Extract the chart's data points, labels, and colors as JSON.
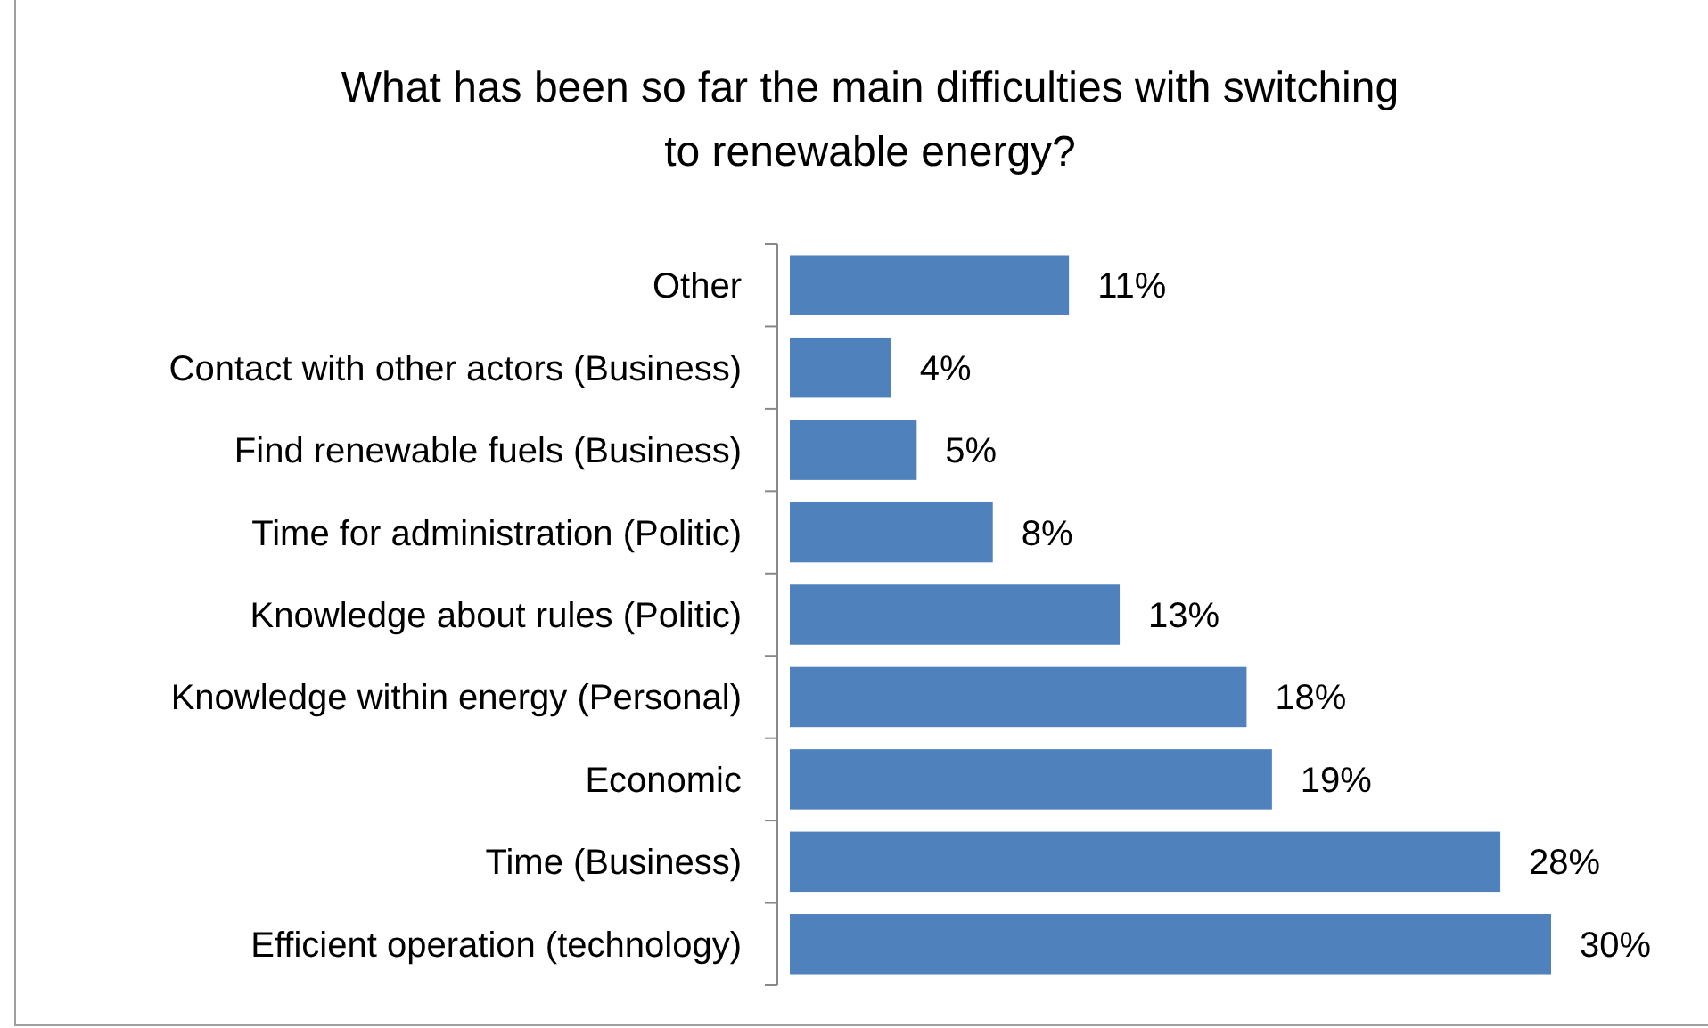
{
  "chart_data": {
    "type": "bar",
    "orientation": "horizontal",
    "title": "What has been so far the main difficulties with switching to renewable energy?",
    "categories": [
      "Other",
      "Contact with other actors (Business)",
      "Find renewable fuels (Business)",
      "Time for administration (Politic)",
      "Knowledge about rules (Politic)",
      "Knowledge within energy (Personal)",
      "Economic",
      "Time (Business)",
      "Efficient operation (technology)"
    ],
    "values": [
      11,
      4,
      5,
      8,
      13,
      18,
      19,
      28,
      30
    ],
    "value_labels": [
      "11%",
      "4%",
      "5%",
      "8%",
      "13%",
      "18%",
      "19%",
      "28%",
      "30%"
    ],
    "color": "#4f81bd"
  }
}
